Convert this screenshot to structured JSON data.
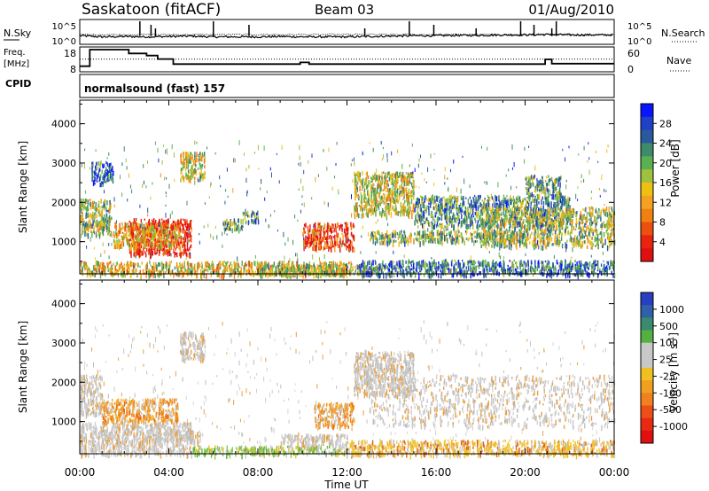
{
  "header": {
    "station": "Saskatoon (fitACF)",
    "beam": "Beam 03",
    "date": "01/Aug/2010"
  },
  "noise_panel": {
    "left_label": "N.Sky",
    "right_label": "N.Search",
    "left_ticks": [
      "10^5",
      "10^0"
    ],
    "right_ticks": [
      "10^5",
      "10^0"
    ]
  },
  "freq_panel": {
    "left_label_1": "Freq.",
    "left_label_2": "[MHz]",
    "right_label": "Nave",
    "left_ticks": [
      "18",
      "8"
    ],
    "right_ticks": [
      "60",
      "0"
    ]
  },
  "cpid": {
    "label": "CPID",
    "program": "normalsound (fast) 157"
  },
  "chart_data": [
    {
      "type": "line",
      "name": "noise",
      "x_units": "hours UT",
      "xlim": [
        0,
        24
      ],
      "series": [
        {
          "values": [
            [
              0,
              1.3
            ],
            [
              1,
              1.0
            ],
            [
              2,
              1.1
            ],
            [
              3,
              1.0
            ],
            [
              4,
              1.1
            ],
            [
              5,
              1.2
            ],
            [
              6,
              1.0
            ],
            [
              7,
              1.0
            ],
            [
              8,
              1.0
            ],
            [
              9,
              1.1
            ],
            [
              10,
              1.0
            ],
            [
              11,
              1.0
            ],
            [
              12,
              1.0
            ],
            [
              13,
              1.1
            ],
            [
              14,
              1.2
            ],
            [
              15,
              1.3
            ],
            [
              16,
              1.3
            ],
            [
              17,
              1.4
            ],
            [
              18,
              1.4
            ],
            [
              19,
              1.5
            ],
            [
              20,
              1.5
            ],
            [
              21,
              1.6
            ],
            [
              22,
              1.5
            ],
            [
              23,
              1.5
            ],
            [
              24,
              1.5
            ]
          ]
        }
      ],
      "spikes_hours": [
        2.7,
        3.2,
        3.4,
        6.0,
        7.6,
        12.8,
        14.8,
        15.9,
        17.8,
        19.8,
        20.4,
        21.2,
        21.4
      ]
    },
    {
      "type": "line",
      "name": "frequency",
      "x_units": "hours UT",
      "xlim": [
        0,
        24
      ],
      "ylim": [
        8,
        18
      ],
      "series": [
        {
          "values": [
            [
              0,
              10.2
            ],
            [
              0.45,
              10.2
            ],
            [
              0.45,
              18
            ],
            [
              2.2,
              18
            ],
            [
              2.2,
              16.2
            ],
            [
              3.0,
              16.2
            ],
            [
              3.0,
              15.2
            ],
            [
              3.5,
              15.2
            ],
            [
              3.5,
              13.6
            ],
            [
              4.2,
              13.6
            ],
            [
              4.2,
              11.2
            ],
            [
              9.9,
              11.2
            ],
            [
              9.9,
              12.0
            ],
            [
              10.3,
              12.0
            ],
            [
              10.3,
              11.2
            ],
            [
              20.9,
              11.2
            ],
            [
              20.9,
              13.4
            ],
            [
              21.2,
              13.4
            ],
            [
              21.2,
              11.4
            ],
            [
              24,
              11.4
            ]
          ]
        },
        {
          "values": [
            [
              0,
              13.5
            ],
            [
              24,
              13.5
            ]
          ],
          "dotted": true
        }
      ]
    },
    {
      "type": "heatmap",
      "name": "power",
      "x": "Time UT",
      "ylabel": "Slant Range [km]",
      "xlim": [
        0,
        24
      ],
      "ylim": [
        180,
        4600
      ],
      "x_ticks": [
        "00:00",
        "04:00",
        "08:00",
        "12:00",
        "16:00",
        "20:00",
        "00:00"
      ],
      "y_ticks": [
        1000,
        2000,
        3000,
        4000
      ],
      "colorbar_label": "Power [dB]",
      "colorbar_ticks": [
        "28",
        "24",
        "20",
        "16",
        "12",
        "8",
        "4"
      ],
      "colorbar_colors": [
        "#0a14ff",
        "#2040c8",
        "#2a5a9c",
        "#3e8a6a",
        "#58b050",
        "#a0c040",
        "#f0c010",
        "#f4a020",
        "#f08010",
        "#ec5010",
        "#e82410",
        "#e01010"
      ],
      "features": [
        {
          "t": [
            0.0,
            12.2
          ],
          "r": [
            180,
            520
          ],
          "level": 0.55
        },
        {
          "t": [
            0.0,
            1.4
          ],
          "r": [
            1200,
            2100
          ],
          "level": 0.45
        },
        {
          "t": [
            0.5,
            1.5
          ],
          "r": [
            2500,
            3050
          ],
          "level": 0.2
        },
        {
          "t": [
            2.2,
            5.0
          ],
          "r": [
            700,
            1600
          ],
          "level": 0.95
        },
        {
          "t": [
            1.5,
            4.5
          ],
          "r": [
            900,
            1500
          ],
          "level": 0.6
        },
        {
          "t": [
            4.5,
            5.6
          ],
          "r": [
            2600,
            3300
          ],
          "level": 0.5
        },
        {
          "t": [
            6.4,
            7.3
          ],
          "r": [
            1300,
            1600
          ],
          "level": 0.35
        },
        {
          "t": [
            7.3,
            8.0
          ],
          "r": [
            1500,
            1800
          ],
          "level": 0.3
        },
        {
          "t": [
            8.0,
            13.5
          ],
          "r": [
            180,
            450
          ],
          "level": 0.45
        },
        {
          "t": [
            10.0,
            12.3
          ],
          "r": [
            850,
            1500
          ],
          "level": 0.85
        },
        {
          "t": [
            12.3,
            15.0
          ],
          "r": [
            1700,
            2800
          ],
          "level": 0.5
        },
        {
          "t": [
            13.0,
            20.0
          ],
          "r": [
            1000,
            1300
          ],
          "level": 0.4
        },
        {
          "t": [
            15.0,
            22.0
          ],
          "r": [
            1400,
            2200
          ],
          "level": 0.3
        },
        {
          "t": [
            18.0,
            24.0
          ],
          "r": [
            900,
            1900
          ],
          "level": 0.45
        },
        {
          "t": [
            20.0,
            21.6
          ],
          "r": [
            2200,
            2700
          ],
          "level": 0.35
        },
        {
          "t": [
            12.5,
            24.0
          ],
          "r": [
            180,
            550
          ],
          "level": 0.25
        }
      ]
    },
    {
      "type": "heatmap",
      "name": "velocity",
      "x": "Time UT",
      "ylabel": "Slant Range [km]",
      "xlim": [
        0,
        24
      ],
      "ylim": [
        180,
        4600
      ],
      "x_ticks": [
        "00:00",
        "04:00",
        "08:00",
        "12:00",
        "16:00",
        "20:00",
        "00:00"
      ],
      "y_ticks": [
        1000,
        2000,
        3000,
        4000
      ],
      "colorbar_label": "Velocity [m s^-1]",
      "colorbar_ticks": [
        "1000",
        "500",
        "100",
        "25",
        "-25",
        "-100",
        "-500",
        "-1000"
      ],
      "colorbar_colors": [
        "#2840c0",
        "#3060a8",
        "#3a8a70",
        "#54b040",
        "#c8c8c8",
        "#c8c8c8",
        "#f0c020",
        "#f0a020",
        "#f08020",
        "#ec5018",
        "#e82a14",
        "#e01010"
      ],
      "features": [
        {
          "t": [
            0.0,
            1.0
          ],
          "r": [
            1200,
            2200
          ],
          "kind": "gray"
        },
        {
          "t": [
            1.0,
            4.4
          ],
          "r": [
            1000,
            1600
          ],
          "kind": "orange"
        },
        {
          "t": [
            0.0,
            5.0
          ],
          "r": [
            180,
            1000
          ],
          "kind": "gray"
        },
        {
          "t": [
            3.0,
            5.5
          ],
          "r": [
            500,
            800
          ],
          "kind": "gray"
        },
        {
          "t": [
            4.5,
            5.6
          ],
          "r": [
            2600,
            3300
          ],
          "kind": "gray"
        },
        {
          "t": [
            5.0,
            12.0
          ],
          "r": [
            180,
            400
          ],
          "kind": "green"
        },
        {
          "t": [
            9.0,
            12.0
          ],
          "r": [
            400,
            700
          ],
          "kind": "gray"
        },
        {
          "t": [
            10.5,
            12.3
          ],
          "r": [
            900,
            1500
          ],
          "kind": "orange"
        },
        {
          "t": [
            12.3,
            15.0
          ],
          "r": [
            1700,
            2800
          ],
          "kind": "gray"
        },
        {
          "t": [
            13.0,
            24.0
          ],
          "r": [
            900,
            2200
          ],
          "kind": "gray"
        },
        {
          "t": [
            12.0,
            24.0
          ],
          "r": [
            180,
            550
          ],
          "kind": "yellow"
        }
      ]
    }
  ]
}
